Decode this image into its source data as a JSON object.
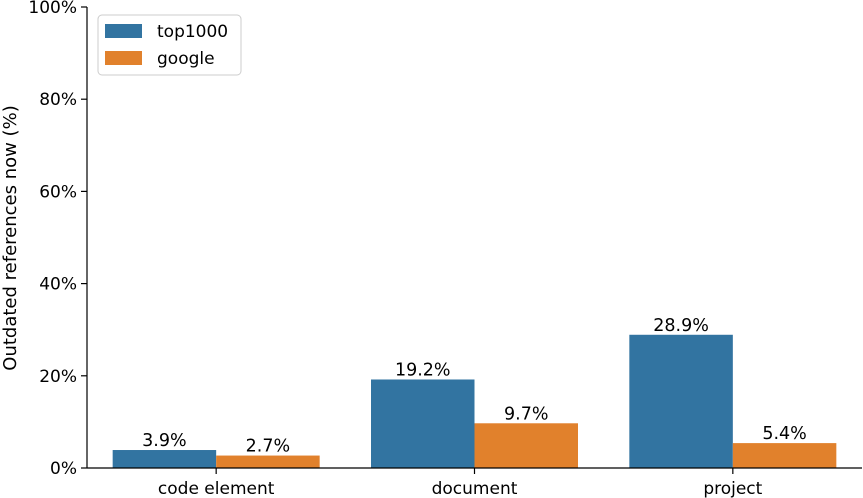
{
  "chart_data": {
    "type": "bar",
    "categories": [
      "code element",
      "document",
      "project"
    ],
    "series": [
      {
        "name": "top1000",
        "values": [
          3.9,
          19.2,
          28.9
        ],
        "labels": [
          "3.9%",
          "19.2%",
          "28.9%"
        ],
        "color": "#3274a1"
      },
      {
        "name": "google",
        "values": [
          2.7,
          9.7,
          5.4
        ],
        "labels": [
          "2.7%",
          "9.7%",
          "5.4%"
        ],
        "color": "#e1812c"
      }
    ],
    "title": "",
    "xlabel": "",
    "ylabel": "Outdated references now (%)",
    "ylim": [
      0,
      100
    ],
    "yticks": [
      0,
      20,
      40,
      60,
      80,
      100
    ],
    "ytick_labels": [
      "0%",
      "20%",
      "40%",
      "60%",
      "80%",
      "100%"
    ],
    "grid": false,
    "legend_position": "top-left"
  }
}
